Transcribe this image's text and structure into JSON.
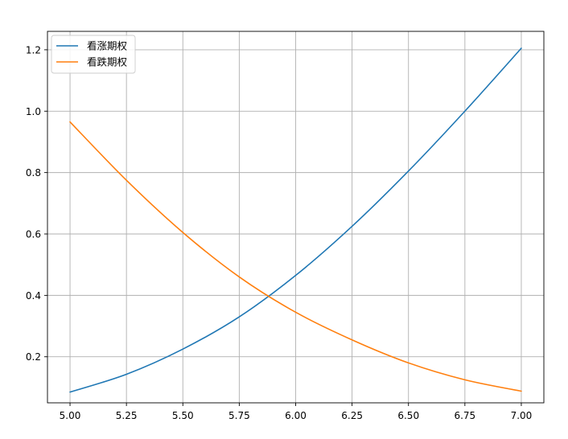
{
  "chart_data": {
    "type": "line",
    "title": "",
    "xlabel": "",
    "ylabel": "",
    "xlim": [
      4.9,
      7.1
    ],
    "ylim": [
      0.05,
      1.26
    ],
    "grid": true,
    "legend_position": "top-left",
    "x_ticks": [
      5.0,
      5.25,
      5.5,
      5.75,
      6.0,
      6.25,
      6.5,
      6.75,
      7.0
    ],
    "x_tick_labels": [
      "5.00",
      "5.25",
      "5.50",
      "5.75",
      "6.00",
      "6.25",
      "6.50",
      "6.75",
      "7.00"
    ],
    "y_ticks": [
      0.2,
      0.4,
      0.6,
      0.8,
      1.0,
      1.2
    ],
    "y_tick_labels": [
      "0.2",
      "0.4",
      "0.6",
      "0.8",
      "1.0",
      "1.2"
    ],
    "x": [
      5.0,
      5.25,
      5.5,
      5.75,
      6.0,
      6.25,
      6.5,
      6.75,
      7.0
    ],
    "series": [
      {
        "name": "看涨期权",
        "color": "#1f77b4",
        "values": [
          0.085,
          0.143,
          0.225,
          0.33,
          0.465,
          0.625,
          0.805,
          1.0,
          1.205
        ]
      },
      {
        "name": "看跌期权",
        "color": "#ff7f0e",
        "values": [
          0.965,
          0.775,
          0.605,
          0.46,
          0.345,
          0.255,
          0.18,
          0.125,
          0.088
        ]
      }
    ]
  }
}
